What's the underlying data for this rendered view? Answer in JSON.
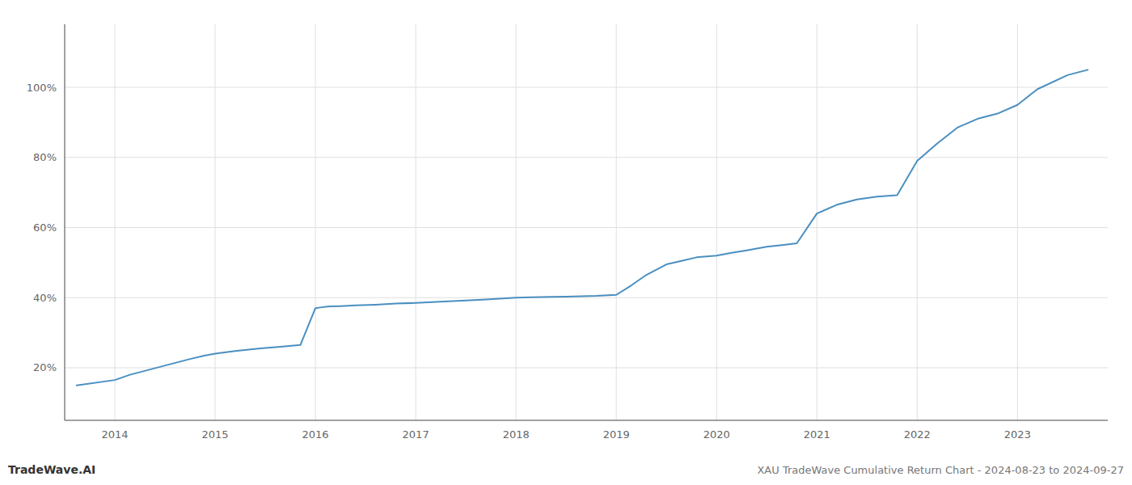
{
  "chart_data": {
    "type": "line",
    "title": "XAU TradeWave Cumulative Return Chart - 2024-08-23 to 2024-09-27",
    "annotations": [
      "TradeWave.AI"
    ],
    "color": "#4a8fc0",
    "grid": true,
    "x": [
      2013.62,
      2014.0,
      2014.15,
      2014.35,
      2014.55,
      2014.75,
      2014.9,
      2015.0,
      2015.2,
      2015.45,
      2015.65,
      2015.85,
      2016.0,
      2016.05,
      2016.1,
      2016.15,
      2016.25,
      2016.4,
      2016.6,
      2016.8,
      2017.0,
      2017.2,
      2017.5,
      2017.7,
      2017.9,
      2018.0,
      2018.15,
      2018.35,
      2018.5,
      2018.65,
      2018.8,
      2019.0,
      2019.15,
      2019.3,
      2019.5,
      2019.65,
      2019.8,
      2020.0,
      2020.15,
      2020.3,
      2020.5,
      2020.65,
      2020.8,
      2021.0,
      2021.2,
      2021.4,
      2021.6,
      2021.8,
      2022.0,
      2022.2,
      2022.4,
      2022.6,
      2022.8,
      2023.0,
      2023.2,
      2023.5,
      2023.7
    ],
    "values": [
      15.0,
      16.5,
      18.0,
      19.5,
      21.0,
      22.5,
      23.5,
      24.0,
      24.8,
      25.5,
      26.0,
      26.5,
      37.0,
      37.2,
      37.4,
      37.5,
      37.6,
      37.8,
      38.0,
      38.3,
      38.5,
      38.8,
      39.2,
      39.5,
      39.8,
      40.0,
      40.1,
      40.2,
      40.3,
      40.4,
      40.5,
      40.8,
      43.5,
      46.5,
      49.5,
      50.5,
      51.5,
      52.0,
      52.8,
      53.5,
      54.5,
      55.0,
      55.5,
      64.0,
      66.5,
      68.0,
      68.8,
      69.2,
      79.0,
      84.0,
      88.5,
      91.0,
      92.5,
      95.0,
      99.5,
      103.5,
      105.0
    ],
    "xlim": [
      2013.5,
      2023.9
    ],
    "xticks": [
      2014,
      2015,
      2016,
      2017,
      2018,
      2019,
      2020,
      2021,
      2022,
      2023
    ],
    "ylim": [
      5,
      118
    ],
    "yticks": [
      {
        "value": 20,
        "label": "20%"
      },
      {
        "value": 40,
        "label": "40%"
      },
      {
        "value": 60,
        "label": "60%"
      },
      {
        "value": 80,
        "label": "80%"
      },
      {
        "value": 100,
        "label": "100%"
      }
    ]
  }
}
